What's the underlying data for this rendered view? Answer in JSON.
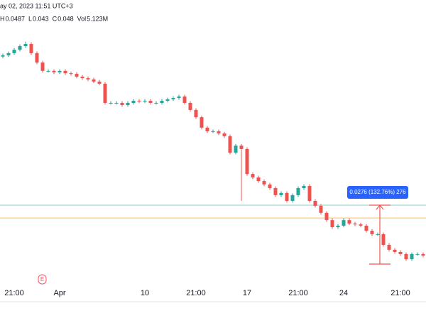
{
  "header": {
    "datetime": "ay 02, 2023 11:51 UTC+3",
    "ohlc": [
      {
        "label": "H",
        "value": 0.0487
      },
      {
        "label": "L",
        "value": 0.043
      },
      {
        "label": "C",
        "value": 0.048
      },
      {
        "label": "Vol",
        "value": "5.123M"
      }
    ]
  },
  "chart_data": {
    "type": "candlestick",
    "up_color": "#26a69a",
    "down_color": "#ef5350",
    "ylim": [
      0.0115,
      0.1445
    ],
    "categories": [
      null,
      null,
      "21:00",
      null,
      null,
      null,
      null,
      null,
      null,
      null,
      "Apr",
      null,
      null,
      null,
      null,
      null,
      null,
      null,
      null,
      null,
      null,
      null,
      null,
      null,
      null,
      "10",
      null,
      null,
      null,
      null,
      null,
      null,
      null,
      null,
      "21:00",
      null,
      null,
      null,
      null,
      null,
      null,
      null,
      null,
      "17",
      null,
      null,
      null,
      null,
      null,
      null,
      null,
      null,
      "21:00",
      null,
      null,
      null,
      null,
      null,
      null,
      null,
      "24",
      null,
      null,
      null,
      null,
      null,
      null,
      null,
      null,
      null,
      "21:00",
      null,
      null,
      null,
      null
    ],
    "open": [
      0.118,
      0.1186,
      0.1196,
      0.1212,
      0.1229,
      0.1239,
      0.1196,
      0.1152,
      0.1113,
      0.1113,
      0.1106,
      0.1113,
      0.1102,
      0.1099,
      0.1086,
      0.1079,
      0.1073,
      0.1063,
      0.1053,
      0.0963,
      0.0963,
      0.0963,
      0.0953,
      0.0963,
      0.0973,
      0.097,
      0.0973,
      0.0963,
      0.0963,
      0.0973,
      0.098,
      0.0986,
      0.0993,
      0.0963,
      0.093,
      0.0896,
      0.0847,
      0.083,
      0.083,
      0.082,
      0.0807,
      0.073,
      0.0763,
      0.0747,
      0.063,
      0.0614,
      0.0597,
      0.0581,
      0.0564,
      0.0531,
      0.0541,
      0.0504,
      0.0531,
      0.0564,
      0.0574,
      0.0504,
      0.0481,
      0.0448,
      0.0414,
      0.0381,
      0.0388,
      0.0414,
      0.0398,
      0.0394,
      0.0388,
      0.0364,
      0.0348,
      0.0348,
      0.0298,
      0.0275,
      0.0265,
      0.0255,
      0.0231,
      0.0255,
      0.0255
    ],
    "high": [
      0.1194,
      0.1204,
      0.122,
      0.1237,
      0.125,
      0.1247,
      0.1204,
      0.116,
      0.1121,
      0.1121,
      0.1121,
      0.1121,
      0.111,
      0.1107,
      0.1094,
      0.1087,
      0.1081,
      0.1071,
      0.1061,
      0.0971,
      0.0971,
      0.0971,
      0.0971,
      0.0981,
      0.0981,
      0.0981,
      0.0981,
      0.0971,
      0.0981,
      0.0988,
      0.0994,
      0.1001,
      0.1001,
      0.0971,
      0.0938,
      0.0904,
      0.0855,
      0.0838,
      0.0838,
      0.0828,
      0.0815,
      0.0771,
      0.0771,
      0.0755,
      0.0638,
      0.0622,
      0.0605,
      0.0589,
      0.0572,
      0.0549,
      0.0549,
      0.0539,
      0.0572,
      0.0582,
      0.0582,
      0.0512,
      0.0489,
      0.0456,
      0.0422,
      0.0396,
      0.0422,
      0.0422,
      0.0406,
      0.0402,
      0.0396,
      0.0372,
      0.0356,
      0.0356,
      0.0306,
      0.0283,
      0.0273,
      0.0263,
      0.0263,
      0.0263,
      0.0263
    ],
    "low": [
      0.1172,
      0.1178,
      0.1188,
      0.1204,
      0.1221,
      0.1188,
      0.1144,
      0.1105,
      0.1105,
      0.1098,
      0.1098,
      0.1094,
      0.1091,
      0.1078,
      0.1071,
      0.1065,
      0.1055,
      0.1045,
      0.0955,
      0.0955,
      0.0955,
      0.0945,
      0.0945,
      0.0955,
      0.0962,
      0.0962,
      0.0955,
      0.0955,
      0.0955,
      0.0965,
      0.0972,
      0.0978,
      0.0955,
      0.0922,
      0.0888,
      0.0839,
      0.0822,
      0.0822,
      0.0812,
      0.0799,
      0.0722,
      0.0722,
      0.0504,
      0.0622,
      0.0606,
      0.0589,
      0.0573,
      0.0556,
      0.0523,
      0.0523,
      0.0496,
      0.0496,
      0.0523,
      0.0556,
      0.0496,
      0.0473,
      0.044,
      0.0406,
      0.0373,
      0.0373,
      0.038,
      0.039,
      0.0386,
      0.038,
      0.0356,
      0.034,
      0.034,
      0.029,
      0.0267,
      0.0257,
      0.0247,
      0.0223,
      0.0223,
      0.0247,
      0.024
    ],
    "close": [
      0.1186,
      0.1196,
      0.1212,
      0.1229,
      0.1239,
      0.1196,
      0.1152,
      0.1113,
      0.1113,
      0.1106,
      0.1113,
      0.1102,
      0.1099,
      0.1086,
      0.1079,
      0.1073,
      0.1063,
      0.1053,
      0.0963,
      0.0963,
      0.0963,
      0.0953,
      0.0963,
      0.0973,
      0.097,
      0.0973,
      0.0963,
      0.0963,
      0.0973,
      0.098,
      0.0986,
      0.0993,
      0.0963,
      0.093,
      0.0896,
      0.0847,
      0.083,
      0.083,
      0.082,
      0.0807,
      0.073,
      0.0763,
      0.0747,
      0.063,
      0.0614,
      0.0597,
      0.0581,
      0.0564,
      0.0531,
      0.0541,
      0.0504,
      0.0531,
      0.0564,
      0.0574,
      0.0504,
      0.0481,
      0.0448,
      0.0414,
      0.0381,
      0.0388,
      0.0414,
      0.0398,
      0.0394,
      0.0388,
      0.0364,
      0.0348,
      0.0348,
      0.0298,
      0.0275,
      0.0265,
      0.0255,
      0.0231,
      0.0255,
      0.0255,
      0.0248
    ],
    "price_lines": [
      {
        "value": 0.0484,
        "color": "#26a69a"
      },
      {
        "value": 0.0424,
        "color": "#ff9800"
      }
    ],
    "measure": {
      "from": 0.0208,
      "to": 0.0484,
      "label": "0.0276 (132.76%) 276",
      "color": "#ef5350"
    },
    "event_marker": {
      "label": "E",
      "index": 7
    }
  }
}
